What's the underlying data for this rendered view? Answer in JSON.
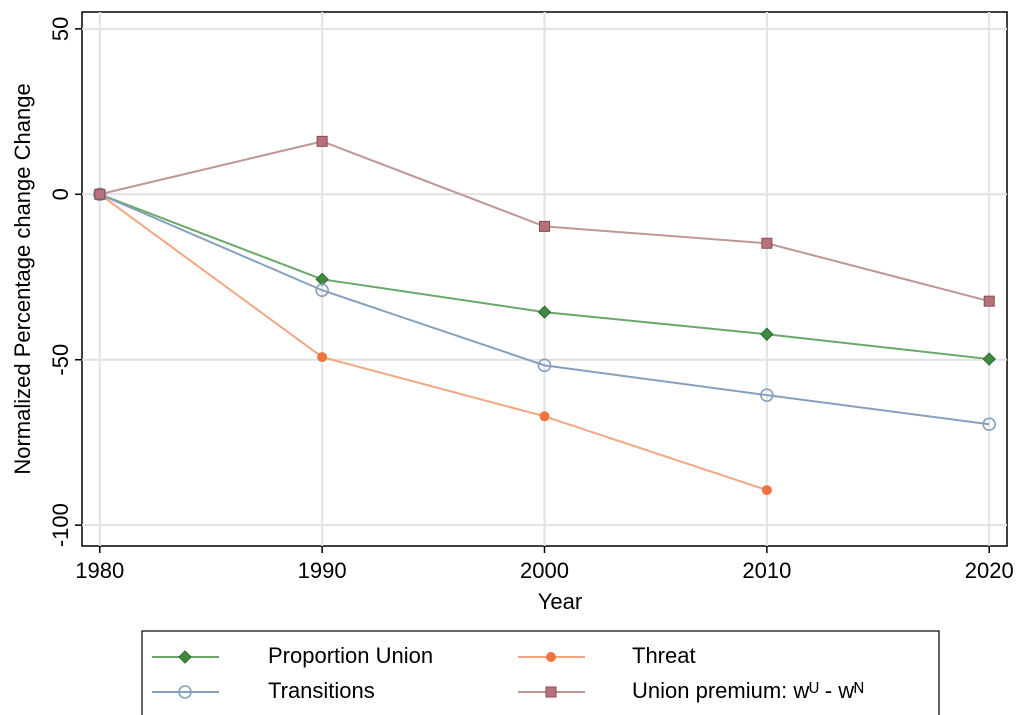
{
  "chart_data": {
    "type": "line",
    "x_label": "Year",
    "y_label": "Normalized Percentage change Change",
    "x": [
      1980,
      1990,
      2000,
      2010,
      2020
    ],
    "xlim": [
      1979.2,
      2020.8
    ],
    "xticks": [
      1980,
      1990,
      2000,
      2010,
      2020
    ],
    "ylim": [
      -106.3,
      55.1
    ],
    "yticks": [
      -100,
      -50,
      0,
      50
    ],
    "grid": true,
    "series": [
      {
        "name": "Proportion Union",
        "color": "#6aa86a",
        "marker_color": "#3f8a3f",
        "marker": "diamond",
        "values": [
          0,
          -25.7,
          -35.6,
          -42.3,
          -49.8
        ]
      },
      {
        "name": "Threat",
        "color": "#f4a582",
        "marker_color": "#f27340",
        "marker": "circle",
        "values": [
          0,
          -49.2,
          -67.1,
          -89.4,
          null
        ]
      },
      {
        "name": "Transitions",
        "color": "#86a0bd",
        "marker_color": "#86a0bd",
        "marker": "hollow-circle",
        "values": [
          0,
          -29.0,
          -51.7,
          -60.7,
          -69.5
        ]
      },
      {
        "name": "Union premium: wᵁ - wᴺ",
        "color": "#bf9696",
        "marker_color": "#b5727a",
        "marker": "square",
        "values": [
          0,
          16.0,
          -9.7,
          -14.8,
          -32.3
        ]
      }
    ]
  }
}
